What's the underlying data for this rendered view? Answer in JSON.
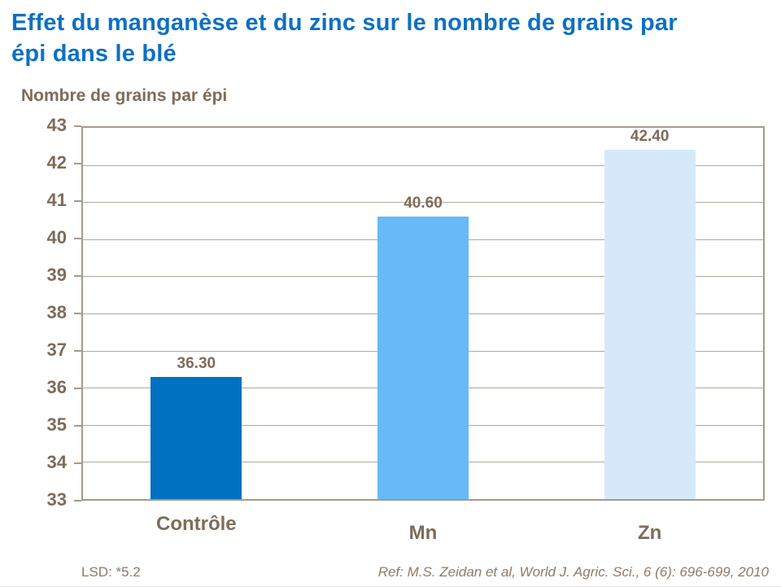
{
  "page": {
    "title_lines": [
      "Effet du manganèse et du zinc sur le nombre de grains par",
      "épi dans le blé"
    ],
    "axis_title": "Nombre de grains par épi",
    "footer_lsd": "LSD: *5.2",
    "footer_ref": "Ref: M.S. Zeidan et al, World J. Agric. Sci., 6 (6): 696-699, 2010"
  },
  "colors": {
    "title_blue": "#0d70c4",
    "label_brown": "#7d6c58",
    "footer_brown": "#8c7b69",
    "axis_line": "#a49a8d",
    "gridline": "#b2a89b",
    "background": "#ffffff"
  },
  "chart_data": {
    "type": "bar",
    "title": "Effet du manganèse et du zinc sur le nombre de grains par épi dans le blé",
    "ylabel": "Nombre de grains par épi",
    "categories": [
      "Contrôle",
      "Mn",
      "Zn"
    ],
    "values": [
      36.3,
      40.6,
      42.4
    ],
    "value_labels": [
      "36.30",
      "40.60",
      "42.40"
    ],
    "bar_colors": [
      "#0071c1",
      "#66baf8",
      "#d6e9fb"
    ],
    "ylim": [
      33,
      43
    ],
    "ytick_step": 1,
    "ytick_labels": [
      "33",
      "34",
      "35",
      "36",
      "37",
      "38",
      "39",
      "40",
      "41",
      "42",
      "43"
    ],
    "grid": true,
    "legend_position": "none",
    "annotations": [
      "LSD: *5.2",
      "Ref: M.S. Zeidan et al, World J. Agric. Sci., 6 (6): 696-699, 2010"
    ]
  }
}
